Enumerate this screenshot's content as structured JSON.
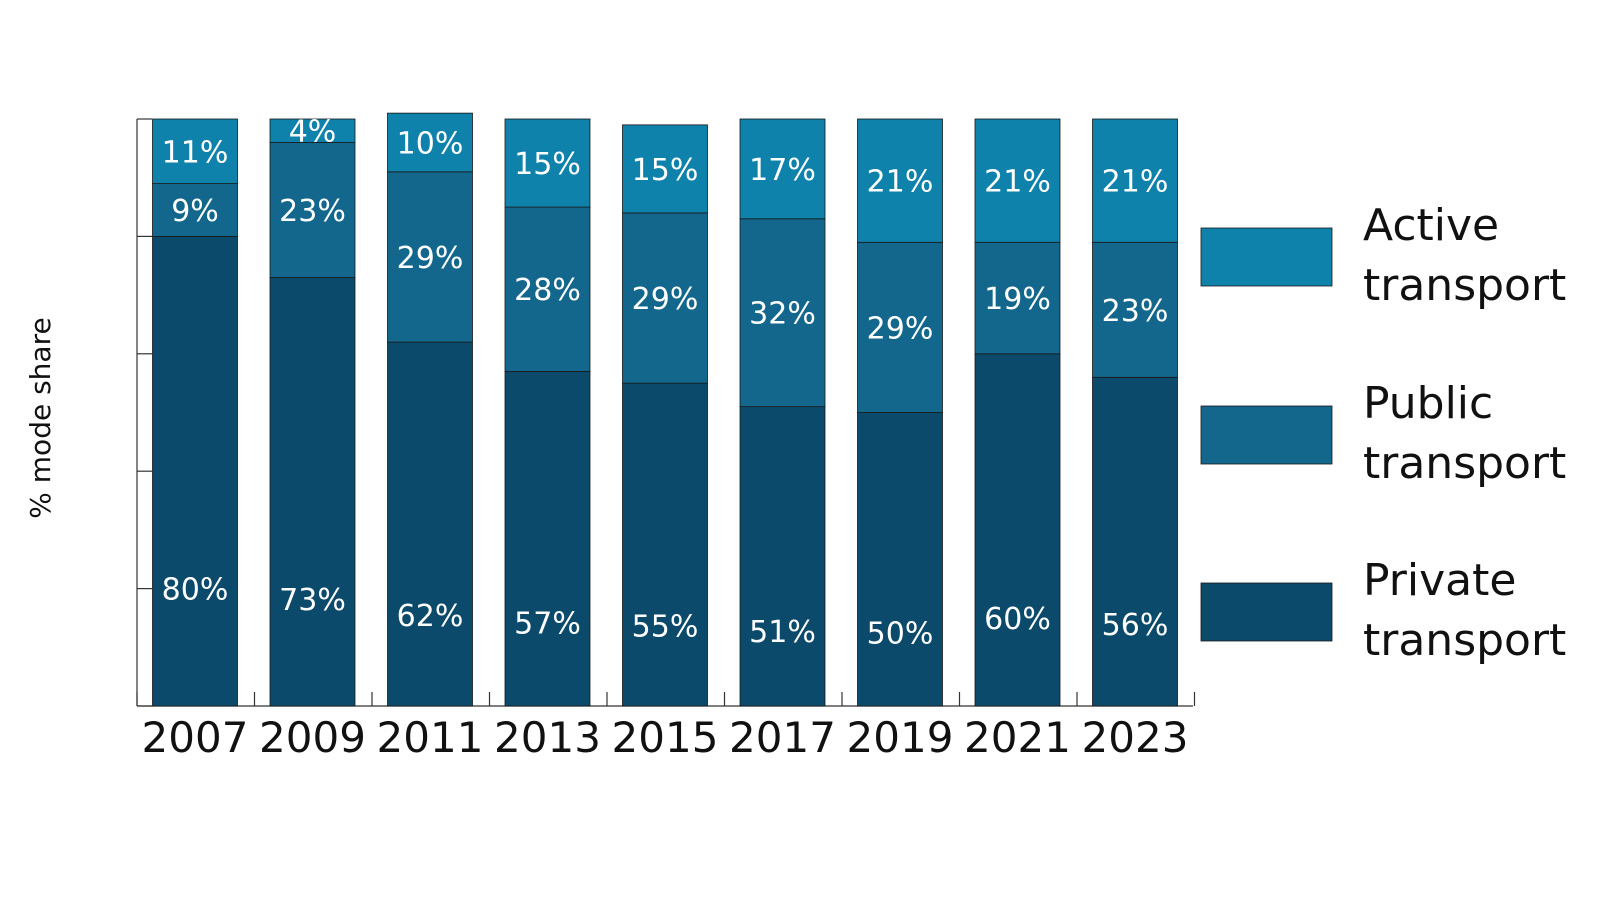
{
  "chart_data": {
    "type": "bar",
    "stacked": true,
    "title": "",
    "xlabel": "",
    "ylabel": "% mode share",
    "ylim": [
      0,
      100
    ],
    "grid": false,
    "legend_position": "right",
    "categories": [
      "2007",
      "2009",
      "2011",
      "2013",
      "2015",
      "2017",
      "2019",
      "2021",
      "2023"
    ],
    "series": [
      {
        "name": "Private transport",
        "color": "#0c4a6b",
        "values": [
          80,
          73,
          62,
          57,
          55,
          51,
          50,
          60,
          56
        ],
        "labels": [
          "80%",
          "73%",
          "62%",
          "57%",
          "55%",
          "51%",
          "50%",
          "60%",
          "56%"
        ]
      },
      {
        "name": "Public transport",
        "color": "#13678d",
        "values": [
          9,
          23,
          29,
          28,
          29,
          32,
          29,
          19,
          23
        ],
        "labels": [
          "9%",
          "23%",
          "29%",
          "28%",
          "29%",
          "32%",
          "29%",
          "19%",
          "23%"
        ]
      },
      {
        "name": "Active transport",
        "color": "#0e82ab",
        "values": [
          11,
          4,
          10,
          15,
          15,
          17,
          21,
          21,
          21
        ],
        "labels": [
          "11%",
          "4%",
          "10%",
          "15%",
          "15%",
          "17%",
          "21%",
          "21%",
          "21%"
        ]
      }
    ],
    "legend": [
      {
        "series": "Active transport",
        "lines": [
          "Active",
          "transport"
        ],
        "color": "#0e82ab"
      },
      {
        "series": "Public transport",
        "lines": [
          "Public",
          "transport"
        ],
        "color": "#13678d"
      },
      {
        "series": "Private transport",
        "lines": [
          "Private",
          "transport"
        ],
        "color": "#0c4a6b"
      }
    ],
    "colors": {
      "private": "#0c4a6b",
      "public": "#13678d",
      "active": "#0e82ab",
      "axis": "#333333",
      "text": "#111111"
    }
  }
}
